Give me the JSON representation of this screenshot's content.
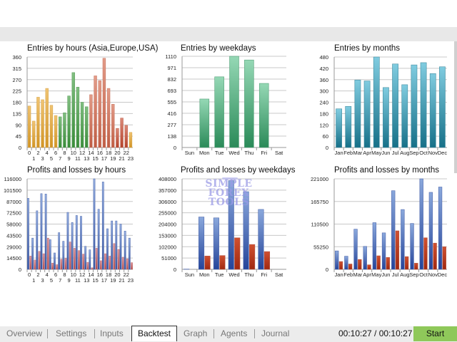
{
  "watermark": {
    "line1": "SIMPLE FOREX",
    "line2": "TOOLS"
  },
  "tabs": [
    {
      "label": "Overview"
    },
    {
      "label": "Settings"
    },
    {
      "label": "Inputs"
    },
    {
      "label": "Backtest",
      "active": true
    },
    {
      "label": "Graph"
    },
    {
      "label": "Agents"
    },
    {
      "label": "Journal"
    }
  ],
  "status": {
    "timer": "00:10:27 / 00:10:27",
    "start_label": "Start",
    "start_color": "#8fc85a"
  },
  "chart_data": [
    {
      "type": "bar",
      "title": "Entries by hours (Asia,Europe,USA)",
      "categories": [
        "0",
        "1",
        "2",
        "3",
        "4",
        "5",
        "6",
        "7",
        "8",
        "9",
        "10",
        "11",
        "12",
        "13",
        "14",
        "15",
        "16",
        "17",
        "18",
        "19",
        "20",
        "21",
        "22",
        "23"
      ],
      "yticks": [
        "0",
        "45",
        "90",
        "135",
        "180",
        "225",
        "270",
        "315",
        "360"
      ],
      "ylim": [
        0,
        360
      ],
      "series": [
        {
          "values": [
            165,
            105,
            200,
            190,
            235,
            168,
            127,
            122,
            138,
            205,
            298,
            240,
            180,
            162,
            210,
            285,
            266,
            355,
            235,
            172,
            76,
            117,
            88,
            60
          ]
        }
      ],
      "bar_colors": [
        "#e8a428",
        "#e8a428",
        "#e8a428",
        "#e8a428",
        "#e8a428",
        "#e8a428",
        "#e8a428",
        "#3f9c3f",
        "#3f9c3f",
        "#3f9c3f",
        "#3f9c3f",
        "#3f9c3f",
        "#3f9c3f",
        "#3f9c3f",
        "#d4664a",
        "#d4664a",
        "#d4664a",
        "#d4664a",
        "#d4664a",
        "#d4664a",
        "#c84a30",
        "#c84a30",
        "#c84a30",
        "#e8a428"
      ],
      "grid": true
    },
    {
      "type": "bar",
      "title": "Entries by weekdays",
      "categories": [
        "Sun",
        "Mon",
        "Tue",
        "Wed",
        "Thu",
        "Fri",
        "Sat"
      ],
      "yticks": [
        "0",
        "138",
        "277",
        "416",
        "555",
        "693",
        "832",
        "971",
        "1110"
      ],
      "ylim": [
        0,
        1110
      ],
      "series": [
        {
          "values": [
            0,
            590,
            860,
            1110,
            1065,
            780,
            0
          ]
        }
      ],
      "colors": [
        "#95d8b5",
        "#2a8a58"
      ],
      "grid": true
    },
    {
      "type": "bar",
      "title": "Entries by months",
      "categories": [
        "Jan",
        "Feb",
        "Mar",
        "Apr",
        "May",
        "Jun",
        "Jul",
        "Aug",
        "Sep",
        "Oct",
        "Nov",
        "Dec"
      ],
      "yticks": [
        "0",
        "60",
        "120",
        "180",
        "240",
        "300",
        "360",
        "420",
        "480"
      ],
      "ylim": [
        0,
        480
      ],
      "series": [
        {
          "values": [
            205,
            218,
            358,
            353,
            480,
            318,
            443,
            333,
            438,
            450,
            392,
            428
          ]
        }
      ],
      "colors": [
        "#80cce0",
        "#167088"
      ],
      "grid": true
    },
    {
      "type": "bar",
      "title": "Profits and losses by hours",
      "categories": [
        "0",
        "1",
        "2",
        "3",
        "4",
        "5",
        "6",
        "7",
        "8",
        "9",
        "10",
        "11",
        "12",
        "13",
        "14",
        "15",
        "16",
        "17",
        "18",
        "19",
        "20",
        "21",
        "22",
        "23"
      ],
      "yticks": [
        "0",
        "14500",
        "29000",
        "43500",
        "58000",
        "72500",
        "87000",
        "101500",
        "116000"
      ],
      "ylim": [
        0,
        116000
      ],
      "series": [
        {
          "values": [
            91000,
            40000,
            75000,
            97000,
            96500,
            38000,
            21000,
            47000,
            36000,
            73000,
            60000,
            69000,
            68000,
            29500,
            25000,
            116000,
            77000,
            112000,
            52000,
            62000,
            62000,
            58000,
            49000,
            40000
          ],
          "colors": [
            "#9ab4e4",
            "#2e4e9e"
          ]
        },
        {
          "values": [
            17000,
            12000,
            23000,
            20000,
            40000,
            8000,
            6000,
            13000,
            14000,
            35000,
            27000,
            24000,
            19500,
            9000,
            2000,
            27000,
            11000,
            20000,
            17000,
            33000,
            25500,
            15500,
            13500,
            8500
          ],
          "colors": [
            "#e0a0a8",
            "#b04848"
          ]
        }
      ],
      "grid": true
    },
    {
      "type": "bar",
      "title": "Profits and losses by weekdays",
      "categories": [
        "Sun",
        "Mon",
        "Tue",
        "Wed",
        "Thu",
        "Fri",
        "Sat"
      ],
      "yticks": [
        "0",
        "51000",
        "102000",
        "153000",
        "204000",
        "255000",
        "306000",
        "357000",
        "408000"
      ],
      "ylim": [
        0,
        408000
      ],
      "series": [
        {
          "values": [
            1000,
            236000,
            232000,
            400000,
            350000,
            270000,
            0
          ],
          "colors": [
            "#8aa8dc",
            "#24449a"
          ]
        },
        {
          "values": [
            0,
            60000,
            62000,
            142000,
            112000,
            80000,
            0
          ],
          "colors": [
            "#d05030",
            "#a02810"
          ]
        }
      ],
      "grid": true
    },
    {
      "type": "bar",
      "title": "Profits and losses by months",
      "categories": [
        "Jan",
        "Feb",
        "Mar",
        "Apr",
        "May",
        "Jun",
        "Jul",
        "Aug",
        "Sep",
        "Oct",
        "Nov",
        "Dec"
      ],
      "yticks": [
        "0",
        "55250",
        "110500",
        "165750",
        "221000"
      ],
      "ylim": [
        0,
        221000
      ],
      "series": [
        {
          "values": [
            45000,
            32000,
            98000,
            56000,
            114000,
            89000,
            192000,
            146000,
            112000,
            221000,
            188000,
            201000
          ],
          "colors": [
            "#8aa8dc",
            "#24449a"
          ]
        },
        {
          "values": [
            19000,
            13000,
            24000,
            11000,
            33000,
            29000,
            94000,
            31000,
            15000,
            77000,
            64000,
            55000
          ],
          "colors": [
            "#d05030",
            "#a02810"
          ]
        }
      ],
      "grid": true
    }
  ]
}
